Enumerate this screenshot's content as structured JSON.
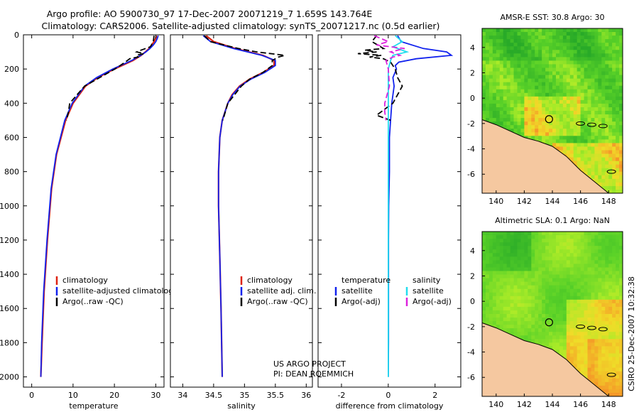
{
  "header": {
    "line1": "Argo profile: AO 5900730_97 17-Dec-2007 20071219_7 1.659S 143.764E",
    "line2": "Climatology: CARS2006. Satellite-adjusted climatology: synTS_20071217.nc (0.5d earlier)"
  },
  "colors": {
    "climatology": "#dd2211",
    "satellite": "#1122ee",
    "argo": "#000000",
    "sat_sal": "#22ddee",
    "argo_sal": "#dd22dd",
    "land": "#f5c8a0"
  },
  "credits": {
    "line1": "US ARGO PROJECT",
    "line2": "PI: DEAN ROEMMICH"
  },
  "stamp": "CSIRO 25-Dec-2007 10:32:38",
  "chart_data": [
    {
      "type": "line",
      "id": "temperature",
      "xlabel": "temperature",
      "ylabel": "",
      "xlim": [
        -2,
        32
      ],
      "ylim": [
        2060,
        0
      ],
      "xticks": [
        0,
        10,
        20,
        30
      ],
      "yticks": [
        0,
        200,
        400,
        600,
        800,
        1000,
        1200,
        1400,
        1600,
        1800,
        2000
      ],
      "legend": [
        "climatology",
        "satellite-adjusted climatology",
        "Argo(..raw -QC)"
      ],
      "series": [
        {
          "name": "climatology",
          "y": [
            5,
            20,
            40,
            60,
            80,
            100,
            120,
            150,
            200,
            250,
            300,
            400,
            500,
            700,
            900,
            1200,
            1500,
            1800,
            2000
          ],
          "x": [
            30.2,
            30.0,
            29.6,
            29.0,
            28.4,
            27.5,
            26.5,
            24.5,
            20.0,
            16.0,
            13.0,
            10.0,
            8.2,
            6.0,
            4.8,
            3.8,
            3.0,
            2.5,
            2.2
          ]
        },
        {
          "name": "satellite-adjusted climatology",
          "y": [
            5,
            20,
            40,
            60,
            80,
            100,
            120,
            150,
            200,
            250,
            300,
            400,
            500,
            700,
            900,
            1200,
            1500,
            1800,
            2000
          ],
          "x": [
            30.6,
            30.4,
            30.0,
            29.4,
            28.6,
            27.6,
            26.4,
            24.2,
            19.6,
            15.7,
            12.8,
            9.8,
            8.0,
            5.9,
            4.7,
            3.7,
            2.9,
            2.4,
            2.2
          ]
        },
        {
          "name": "Argo(..raw -QC)",
          "y": [
            5,
            40,
            70,
            90,
            100,
            110,
            120,
            130,
            140,
            160,
            200,
            300,
            400,
            450,
            500
          ],
          "x": [
            29.6,
            29.4,
            28.7,
            26.4,
            25.4,
            27.1,
            25.3,
            25.7,
            23.7,
            22.6,
            20.1,
            12.8,
            9.2,
            8.9,
            8.4
          ]
        }
      ]
    },
    {
      "type": "line",
      "id": "salinity",
      "xlabel": "salinity",
      "ylabel": "",
      "xlim": [
        33.8,
        36.1
      ],
      "ylim": [
        2060,
        0
      ],
      "xticks": [
        34,
        34.5,
        35,
        35.5,
        36
      ],
      "legend": [
        "climatology",
        "satellite adj. clim.",
        "Argo(..raw -QC)"
      ],
      "series": [
        {
          "name": "climatology",
          "y": [
            5,
            40,
            80,
            120,
            150,
            180,
            220,
            260,
            300,
            350,
            400,
            500,
            600,
            800,
            1000,
            1300,
            1600,
            2000
          ],
          "x": [
            34.38,
            34.5,
            34.85,
            35.3,
            35.48,
            35.48,
            35.3,
            35.08,
            34.92,
            34.8,
            34.73,
            34.64,
            34.6,
            34.58,
            34.58,
            34.6,
            34.62,
            34.64
          ]
        },
        {
          "name": "satellite adj. clim.",
          "y": [
            5,
            40,
            80,
            120,
            150,
            180,
            220,
            260,
            300,
            350,
            400,
            500,
            600,
            800,
            1000,
            1300,
            1600,
            2000
          ],
          "x": [
            34.33,
            34.45,
            34.82,
            35.28,
            35.5,
            35.5,
            35.33,
            35.1,
            34.93,
            34.81,
            34.73,
            34.64,
            34.6,
            34.58,
            34.58,
            34.6,
            34.62,
            34.64
          ]
        },
        {
          "name": "Argo(..raw -QC)",
          "y": [
            5,
            40,
            80,
            100,
            120,
            130,
            150,
            180,
            220,
            260,
            300,
            400,
            500
          ],
          "x": [
            34.35,
            34.45,
            34.9,
            35.2,
            35.65,
            35.55,
            35.45,
            35.45,
            35.3,
            35.08,
            34.95,
            34.73,
            34.65
          ]
        }
      ]
    },
    {
      "type": "line",
      "id": "difference",
      "xlabel": "difference from climatology",
      "ylabel": "",
      "xlim": [
        -3,
        3.1
      ],
      "ylim": [
        2060,
        0
      ],
      "xticks": [
        -2,
        0,
        2
      ],
      "legend_headers": [
        "temperature",
        "salinity"
      ],
      "legend": [
        "satellite",
        "Argo(-adj)",
        "satellite",
        "Argo(-adj)"
      ],
      "series": [
        {
          "name": "satellite",
          "group": "temperature",
          "y": [
            5,
            40,
            80,
            100,
            120,
            140,
            160,
            180,
            200,
            250,
            300,
            400,
            500,
            600,
            800,
            1000,
            1200,
            1500,
            1800,
            2000
          ],
          "x": [
            0.4,
            0.55,
            1.5,
            2.5,
            2.7,
            1.2,
            0.45,
            0.3,
            0.35,
            0.2,
            0.25,
            0.15,
            0.1,
            0.05,
            0.05,
            0.02,
            0.01,
            0.01,
            0.01,
            0.0
          ]
        },
        {
          "name": "Argo(-adj)",
          "group": "temperature",
          "y": [
            5,
            40,
            80,
            90,
            100,
            110,
            120,
            130,
            140,
            160,
            200,
            250,
            300,
            350,
            400,
            450,
            470,
            500
          ],
          "x": [
            -0.5,
            -0.7,
            -0.2,
            -1.0,
            -0.5,
            -1.3,
            -0.3,
            -0.8,
            -0.2,
            0.1,
            0.3,
            0.4,
            0.6,
            0.4,
            0.2,
            -0.3,
            -0.5,
            0.1
          ]
        },
        {
          "name": "satellite",
          "group": "salinity",
          "y": [
            5,
            40,
            70,
            100,
            120,
            150,
            200,
            300,
            400,
            500,
            600,
            800,
            1000,
            1500,
            2000
          ],
          "x": [
            0.3,
            0.6,
            0.2,
            0.8,
            0.2,
            0.1,
            0.0,
            0.0,
            0.0,
            0.0,
            0.0,
            0.0,
            0.0,
            0.0,
            0.0
          ]
        },
        {
          "name": "Argo(-adj)",
          "group": "salinity",
          "y": [
            5,
            40,
            60,
            80,
            100,
            120,
            130,
            150,
            200,
            300,
            400,
            450,
            500
          ],
          "x": [
            -0.6,
            0.0,
            -0.5,
            0.7,
            0.1,
            0.5,
            0.2,
            -0.1,
            0.0,
            0.05,
            -0.15,
            -0.15,
            -0.1
          ]
        }
      ]
    },
    {
      "type": "heatmap",
      "id": "sst_map",
      "title": "AMSR-E SST: 30.8 Argo: 30",
      "xlim": [
        139,
        149
      ],
      "ylim": [
        -7.5,
        5.5
      ],
      "xticks": [
        140,
        142,
        144,
        146,
        148
      ],
      "yticks": [
        4,
        2,
        0,
        -2,
        -4,
        -6
      ],
      "marker": {
        "lon": 143.764,
        "lat": -1.659
      }
    },
    {
      "type": "heatmap",
      "id": "sla_map",
      "title": "Altimetric SLA: 0.1 Argo: NaN",
      "xlim": [
        139,
        149
      ],
      "ylim": [
        -7.5,
        5.5
      ],
      "xticks": [
        140,
        142,
        144,
        146,
        148
      ],
      "yticks": [
        4,
        2,
        0,
        -2,
        -4,
        -6
      ],
      "marker": {
        "lon": 143.764,
        "lat": -1.659
      }
    }
  ]
}
